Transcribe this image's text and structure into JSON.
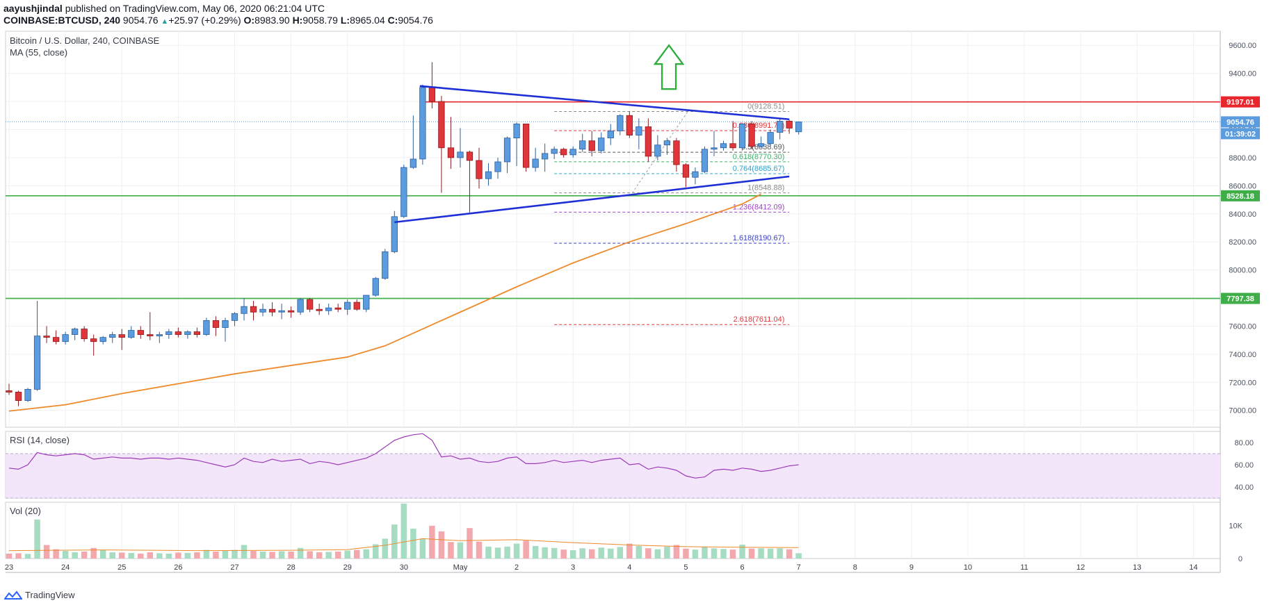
{
  "header": {
    "author": "aayushjindal",
    "published_text": " published on TradingView.com, May 06, 2020 06:21:04 UTC",
    "symbol": "COINBASE:BTCUSD, 240",
    "last_price": "9054.76",
    "change": "+25.97 (+0.29%)",
    "ohlc": {
      "o_label": "O:",
      "o": "8983.90",
      "h_label": "H:",
      "h": "9058.79",
      "l_label": "L:",
      "l": "8965.04",
      "c_label": "C:",
      "c": "9054.76"
    }
  },
  "main_pane": {
    "title": "Bitcoin / U.S. Dollar, 240, COINBASE",
    "indicator": "MA (55, close)"
  },
  "rsi_pane": {
    "title": "RSI (14, close)"
  },
  "vol_pane": {
    "title": "Vol (20)"
  },
  "footer": {
    "brand": "TradingView"
  },
  "colors": {
    "up": "#5b9cdf",
    "up_border": "#2c5f9e",
    "down": "#e0353a",
    "down_border": "#8e1b1e",
    "ma": "#ee8a2b",
    "trend": "#1f2fd6",
    "support": "#3fae49",
    "resistance": "#e8262d",
    "rsi": "#9b3ab8",
    "rsi_band": "#f3e6fb",
    "vol_up": "#a6dcc1",
    "vol_down": "#f2a8ad",
    "arrow": "#2fae3c"
  },
  "chart_data": [
    {
      "type": "candlestick",
      "pane": "price",
      "ylim": [
        6880,
        9700
      ],
      "y_ticks": [
        7000,
        7200,
        7400,
        7600,
        7800,
        8000,
        8200,
        8400,
        8600,
        8800,
        9000,
        9200,
        9400,
        9600
      ],
      "x_ticks": [
        {
          "label": "23",
          "bar": 0
        },
        {
          "label": "24",
          "bar": 6
        },
        {
          "label": "25",
          "bar": 12
        },
        {
          "label": "26",
          "bar": 18
        },
        {
          "label": "27",
          "bar": 24
        },
        {
          "label": "28",
          "bar": 30
        },
        {
          "label": "29",
          "bar": 36
        },
        {
          "label": "30",
          "bar": 42
        },
        {
          "label": "May",
          "bar": 48
        },
        {
          "label": "2",
          "bar": 54
        },
        {
          "label": "3",
          "bar": 60
        },
        {
          "label": "4",
          "bar": 66
        },
        {
          "label": "5",
          "bar": 72
        },
        {
          "label": "6",
          "bar": 78
        },
        {
          "label": "7",
          "bar": 84
        },
        {
          "label": "8",
          "bar": 90
        },
        {
          "label": "9",
          "bar": 96
        },
        {
          "label": "10",
          "bar": 102
        },
        {
          "label": "11",
          "bar": 108
        },
        {
          "label": "12",
          "bar": 114
        },
        {
          "label": "13",
          "bar": 120
        },
        {
          "label": "14",
          "bar": 126
        }
      ],
      "candles": [
        [
          7140,
          7190,
          7110,
          7130
        ],
        [
          7130,
          7140,
          7030,
          7070
        ],
        [
          7070,
          7160,
          7060,
          7150
        ],
        [
          7150,
          7780,
          7140,
          7530
        ],
        [
          7530,
          7600,
          7480,
          7520
        ],
        [
          7520,
          7570,
          7470,
          7490
        ],
        [
          7490,
          7560,
          7470,
          7540
        ],
        [
          7540,
          7590,
          7500,
          7580
        ],
        [
          7580,
          7600,
          7490,
          7510
        ],
        [
          7510,
          7540,
          7390,
          7490
        ],
        [
          7490,
          7530,
          7470,
          7520
        ],
        [
          7520,
          7560,
          7480,
          7540
        ],
        [
          7540,
          7580,
          7430,
          7520
        ],
        [
          7520,
          7600,
          7510,
          7570
        ],
        [
          7570,
          7600,
          7510,
          7540
        ],
        [
          7540,
          7700,
          7500,
          7530
        ],
        [
          7530,
          7560,
          7480,
          7540
        ],
        [
          7540,
          7580,
          7510,
          7560
        ],
        [
          7560,
          7590,
          7520,
          7540
        ],
        [
          7540,
          7570,
          7510,
          7560
        ],
        [
          7560,
          7590,
          7520,
          7540
        ],
        [
          7540,
          7660,
          7530,
          7640
        ],
        [
          7640,
          7670,
          7530,
          7590
        ],
        [
          7590,
          7660,
          7490,
          7640
        ],
        [
          7640,
          7700,
          7600,
          7690
        ],
        [
          7690,
          7800,
          7640,
          7740
        ],
        [
          7740,
          7780,
          7640,
          7700
        ],
        [
          7700,
          7760,
          7670,
          7720
        ],
        [
          7720,
          7770,
          7670,
          7700
        ],
        [
          7700,
          7760,
          7650,
          7710
        ],
        [
          7710,
          7740,
          7660,
          7700
        ],
        [
          7700,
          7800,
          7680,
          7790
        ],
        [
          7790,
          7800,
          7700,
          7720
        ],
        [
          7720,
          7760,
          7680,
          7710
        ],
        [
          7710,
          7760,
          7680,
          7730
        ],
        [
          7730,
          7760,
          7700,
          7720
        ],
        [
          7720,
          7790,
          7680,
          7770
        ],
        [
          7770,
          7790,
          7710,
          7720
        ],
        [
          7720,
          7820,
          7700,
          7820
        ],
        [
          7820,
          7950,
          7810,
          7940
        ],
        [
          7940,
          8150,
          7930,
          8130
        ],
        [
          8130,
          8420,
          8120,
          8380
        ],
        [
          8380,
          8750,
          8370,
          8730
        ],
        [
          8730,
          9100,
          8720,
          8790
        ],
        [
          8790,
          9320,
          8750,
          9300
        ],
        [
          9300,
          9480,
          9150,
          9200
        ],
        [
          9200,
          9240,
          8550,
          8870
        ],
        [
          8870,
          9090,
          8720,
          8800
        ],
        [
          8800,
          9010,
          8730,
          8840
        ],
        [
          8840,
          8850,
          8410,
          8780
        ],
        [
          8780,
          8870,
          8580,
          8650
        ],
        [
          8650,
          8760,
          8600,
          8700
        ],
        [
          8700,
          8800,
          8650,
          8770
        ],
        [
          8770,
          8950,
          8690,
          8940
        ],
        [
          8940,
          9050,
          8740,
          9040
        ],
        [
          9040,
          9030,
          8700,
          8730
        ],
        [
          8730,
          8870,
          8700,
          8790
        ],
        [
          8790,
          8900,
          8700,
          8830
        ],
        [
          8830,
          8880,
          8790,
          8860
        ],
        [
          8860,
          8870,
          8800,
          8820
        ],
        [
          8820,
          8880,
          8800,
          8860
        ],
        [
          8860,
          8970,
          8840,
          8920
        ],
        [
          8920,
          8990,
          8810,
          8850
        ],
        [
          8850,
          8980,
          8830,
          8940
        ],
        [
          8940,
          9040,
          8890,
          8990
        ],
        [
          8990,
          9110,
          8960,
          9100
        ],
        [
          9100,
          9130,
          8940,
          8960
        ],
        [
          8960,
          9080,
          8860,
          9020
        ],
        [
          9020,
          9080,
          8770,
          8810
        ],
        [
          8810,
          8960,
          8780,
          8890
        ],
        [
          8890,
          8940,
          8820,
          8920
        ],
        [
          8920,
          8940,
          8700,
          8750
        ],
        [
          8750,
          8760,
          8590,
          8660
        ],
        [
          8660,
          8730,
          8610,
          8700
        ],
        [
          8700,
          8880,
          8690,
          8860
        ],
        [
          8860,
          8990,
          8810,
          8870
        ],
        [
          8870,
          8920,
          8850,
          8900
        ],
        [
          8900,
          9060,
          8850,
          8870
        ],
        [
          8870,
          9020,
          8850,
          9040
        ],
        [
          9040,
          9060,
          8860,
          8880
        ],
        [
          8880,
          8950,
          8870,
          8900
        ],
        [
          8900,
          9000,
          8880,
          8980
        ],
        [
          8980,
          9080,
          8930,
          9060
        ],
        [
          9060,
          9070,
          8970,
          9010
        ],
        [
          8983.9,
          9058.79,
          8965.04,
          9054.76
        ]
      ],
      "ma55": [
        [
          0,
          6995
        ],
        [
          6,
          7040
        ],
        [
          12,
          7120
        ],
        [
          18,
          7190
        ],
        [
          24,
          7260
        ],
        [
          30,
          7320
        ],
        [
          36,
          7380
        ],
        [
          40,
          7460
        ],
        [
          44,
          7580
        ],
        [
          48,
          7700
        ],
        [
          54,
          7880
        ],
        [
          60,
          8050
        ],
        [
          66,
          8200
        ],
        [
          72,
          8330
        ],
        [
          78,
          8470
        ],
        [
          80,
          8540
        ]
      ],
      "last_price": 9054.76,
      "horizontal_levels": [
        {
          "label": "9197.01",
          "value": 9197.01,
          "role": "resistance"
        },
        {
          "label": "8528.18",
          "value": 8528.18,
          "role": "support"
        },
        {
          "label": "7797.38",
          "value": 7797.38,
          "role": "support"
        }
      ],
      "fibonacci": [
        {
          "label": "0(9128.51)",
          "value": 9128.51,
          "color": "#8a8a8a"
        },
        {
          "label": "0.236(8991.72)",
          "value": 8991.72,
          "color": "#e0353a"
        },
        {
          "label": "0.5(8838.69)",
          "value": 8838.69,
          "color": "#555555"
        },
        {
          "label": "0.618(8770.30)",
          "value": 8770.3,
          "color": "#3fae6b"
        },
        {
          "label": "0.764(8685.67)",
          "value": 8685.67,
          "color": "#2ea3c8"
        },
        {
          "label": "1(8548.88)",
          "value": 8548.88,
          "color": "#8a8a8a"
        },
        {
          "label": "1.236(8412.09)",
          "value": 8412.09,
          "color": "#a040c8"
        },
        {
          "label": "1.618(8190.67)",
          "value": 8190.67,
          "color": "#3a40c8"
        },
        {
          "label": "2.618(7611.04)",
          "value": 7611.04,
          "color": "#e0353a"
        }
      ],
      "triangle": {
        "upper": [
          [
            43.7,
            9310
          ],
          [
            83,
            9073
          ]
        ],
        "lower": [
          [
            41,
            8340
          ],
          [
            83,
            8666
          ]
        ]
      },
      "price_tags": [
        {
          "label": "9054.76",
          "role": "last"
        },
        {
          "label": "01:39:02",
          "role": "countdown"
        }
      ],
      "annotations": [
        "up-arrow"
      ]
    },
    {
      "type": "line",
      "pane": "rsi",
      "name": "RSI (14, close)",
      "ylim": [
        30,
        90
      ],
      "y_ticks": [
        40,
        60,
        80
      ],
      "band": [
        30,
        70
      ],
      "points": [
        [
          0,
          57
        ],
        [
          1,
          56
        ],
        [
          2,
          60
        ],
        [
          3,
          71
        ],
        [
          4,
          69
        ],
        [
          5,
          68
        ],
        [
          6,
          69
        ],
        [
          7,
          70
        ],
        [
          8,
          69
        ],
        [
          9,
          65
        ],
        [
          10,
          66
        ],
        [
          11,
          67
        ],
        [
          12,
          66
        ],
        [
          13,
          66
        ],
        [
          14,
          65
        ],
        [
          15,
          66
        ],
        [
          16,
          66
        ],
        [
          17,
          65
        ],
        [
          18,
          66
        ],
        [
          19,
          65
        ],
        [
          20,
          64
        ],
        [
          21,
          62
        ],
        [
          22,
          60
        ],
        [
          23,
          58
        ],
        [
          24,
          60
        ],
        [
          25,
          66
        ],
        [
          26,
          63
        ],
        [
          27,
          62
        ],
        [
          28,
          65
        ],
        [
          29,
          63
        ],
        [
          30,
          64
        ],
        [
          31,
          65
        ],
        [
          32,
          61
        ],
        [
          33,
          63
        ],
        [
          34,
          62
        ],
        [
          35,
          60
        ],
        [
          36,
          62
        ],
        [
          37,
          64
        ],
        [
          38,
          66
        ],
        [
          39,
          70
        ],
        [
          40,
          76
        ],
        [
          41,
          82
        ],
        [
          42,
          85
        ],
        [
          43,
          87
        ],
        [
          44,
          88
        ],
        [
          45,
          82
        ],
        [
          46,
          67
        ],
        [
          47,
          68
        ],
        [
          48,
          65
        ],
        [
          49,
          66
        ],
        [
          50,
          63
        ],
        [
          51,
          62
        ],
        [
          52,
          63
        ],
        [
          53,
          66
        ],
        [
          54,
          67
        ],
        [
          55,
          61
        ],
        [
          56,
          61
        ],
        [
          57,
          62
        ],
        [
          58,
          64
        ],
        [
          59,
          62
        ],
        [
          60,
          63
        ],
        [
          61,
          64
        ],
        [
          62,
          62
        ],
        [
          63,
          64
        ],
        [
          64,
          65
        ],
        [
          65,
          66
        ],
        [
          66,
          60
        ],
        [
          67,
          61
        ],
        [
          68,
          56
        ],
        [
          69,
          58
        ],
        [
          70,
          57
        ],
        [
          71,
          55
        ],
        [
          72,
          50
        ],
        [
          73,
          48
        ],
        [
          74,
          49
        ],
        [
          75,
          55
        ],
        [
          76,
          56
        ],
        [
          77,
          55
        ],
        [
          78,
          57
        ],
        [
          79,
          56
        ],
        [
          80,
          54
        ],
        [
          81,
          55
        ],
        [
          82,
          57
        ],
        [
          83,
          59
        ],
        [
          84,
          60
        ]
      ]
    },
    {
      "type": "bar",
      "pane": "volume",
      "name": "Vol (20)",
      "ylim": [
        0,
        17000
      ],
      "y_ticks": [
        {
          "label": "0",
          "value": 0
        },
        {
          "label": "10K",
          "value": 10000
        }
      ],
      "values": [
        1500,
        1600,
        1400,
        11800,
        4100,
        2800,
        2300,
        1900,
        2100,
        3200,
        2600,
        1900,
        1800,
        1700,
        1500,
        1900,
        1600,
        1500,
        1800,
        1700,
        1900,
        2600,
        2100,
        2300,
        2600,
        4100,
        2300,
        2100,
        2000,
        2200,
        2100,
        3200,
        2200,
        1900,
        2000,
        2100,
        2400,
        2600,
        2800,
        4300,
        6000,
        10300,
        16600,
        9000,
        6000,
        9900,
        8200,
        5000,
        4900,
        9200,
        5100,
        3600,
        3300,
        3600,
        4500,
        5400,
        3800,
        3400,
        3200,
        2700,
        2500,
        3100,
        2800,
        3300,
        3000,
        3500,
        4500,
        3800,
        3100,
        2800,
        3600,
        4100,
        3000,
        2700,
        3600,
        3100,
        2900,
        2700,
        4200,
        3000,
        3100,
        3000,
        3100,
        2800,
        1600
      ],
      "ma20": [
        [
          0,
          2400
        ],
        [
          10,
          2600
        ],
        [
          20,
          2400
        ],
        [
          30,
          2500
        ],
        [
          36,
          2700
        ],
        [
          40,
          4000
        ],
        [
          44,
          6000
        ],
        [
          48,
          5400
        ],
        [
          54,
          5700
        ],
        [
          60,
          4800
        ],
        [
          66,
          4100
        ],
        [
          72,
          3600
        ],
        [
          78,
          3400
        ],
        [
          84,
          3300
        ]
      ]
    }
  ]
}
